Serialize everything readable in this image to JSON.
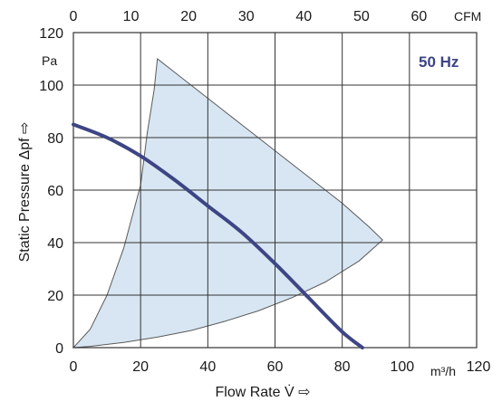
{
  "chart_data": {
    "type": "line",
    "x_unit": "m³/h",
    "y_unit": "Pa",
    "top_axis_unit": "CFM",
    "badge": "50 Hz",
    "xlabel": "Flow Rate  V̇  ⇨",
    "ylabel": "Static Pressure  Δpf  ⇨",
    "xlim": [
      0,
      120
    ],
    "ylim": [
      0,
      120
    ],
    "top_xlim": [
      0,
      70
    ],
    "x_ticks": [
      0,
      20,
      40,
      60,
      80,
      100,
      120
    ],
    "x_tick_labels": [
      "0",
      "20",
      "40",
      "60",
      "80",
      "100",
      "120"
    ],
    "y_ticks": [
      0,
      20,
      40,
      60,
      80,
      100,
      120
    ],
    "y_tick_labels": [
      "0",
      "20",
      "40",
      "60",
      "80",
      "100",
      "120"
    ],
    "top_ticks": [
      0,
      10,
      20,
      30,
      40,
      50,
      60
    ],
    "top_tick_labels": [
      "0",
      "10",
      "20",
      "30",
      "40",
      "50",
      "60"
    ],
    "grid": true,
    "operating_range": {
      "x": [
        0,
        5,
        10,
        15,
        20,
        22,
        24,
        25,
        30,
        40,
        50,
        60,
        70,
        80,
        88,
        92,
        85,
        75,
        65,
        55,
        45,
        35,
        25,
        15,
        5,
        0
      ],
      "y": [
        0,
        7,
        20,
        38,
        62,
        82,
        98,
        110,
        105,
        95,
        85,
        75,
        65,
        55,
        46,
        41,
        33,
        25,
        19,
        14,
        10,
        6.5,
        4,
        2,
        0.5,
        0
      ]
    },
    "series": [
      {
        "x": [
          0,
          10,
          20,
          30,
          40,
          50,
          60,
          70,
          80,
          86
        ],
        "y": [
          85,
          80,
          73,
          64,
          54,
          44,
          32,
          19,
          6,
          0
        ]
      }
    ],
    "colors": {
      "curve": "#3d4585",
      "fill": "#d7e6f2",
      "fill_stroke": "#5a5a5a",
      "grid": "#333333",
      "badge": "#3d4585"
    }
  }
}
